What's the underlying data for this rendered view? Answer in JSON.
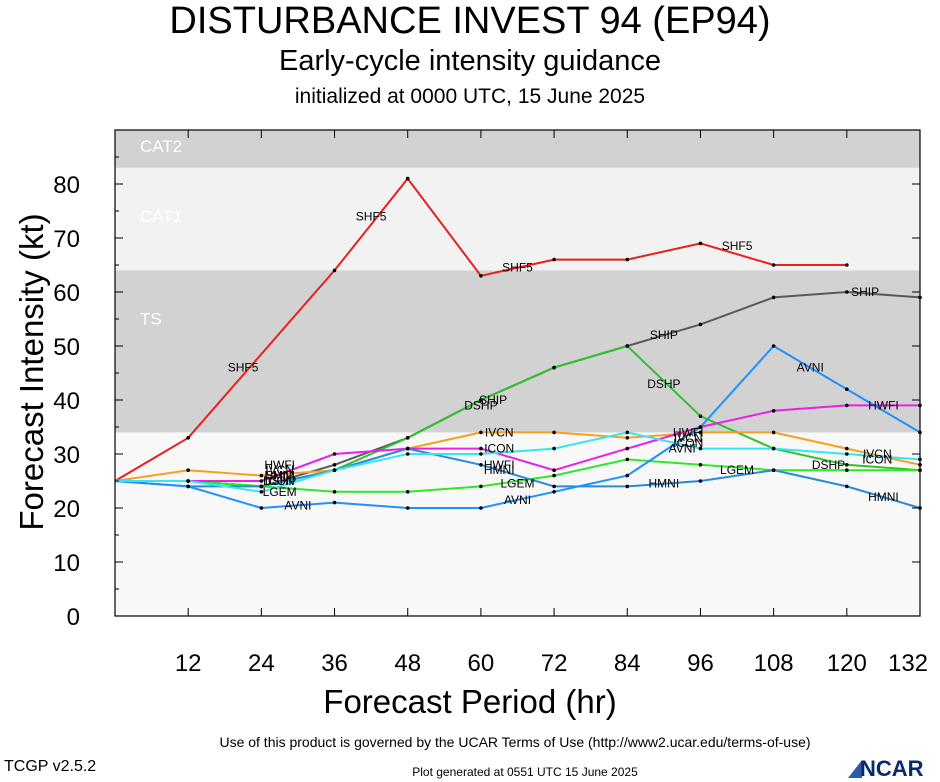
{
  "header": {
    "title": "DISTURBANCE INVEST 94 (EP94)",
    "subtitle": "Early-cycle intensity guidance",
    "initialized": "initialized at 0000 UTC, 15 June 2025"
  },
  "footer": {
    "terms": "Use of this product is governed by the UCAR Terms of Use (http://www2.ucar.edu/terms-of-use)",
    "version": "TCGP v2.5.2",
    "generated": "Plot generated at 0551 UTC   15 June 2025",
    "logo": "NCAR"
  },
  "chart_data": {
    "type": "line",
    "title": "DISTURBANCE INVEST 94 (EP94)",
    "subtitle": "Early-cycle intensity guidance",
    "xlabel": "Forecast Period (hr)",
    "ylabel": "Forecast Intensity (kt)",
    "xlim": [
      0,
      132
    ],
    "ylim": [
      0,
      90
    ],
    "xticks": [
      12,
      24,
      36,
      48,
      60,
      72,
      84,
      96,
      108,
      120,
      132
    ],
    "yticks": [
      0,
      10,
      20,
      30,
      40,
      50,
      60,
      70,
      80
    ],
    "grid": false,
    "bands": [
      {
        "label": "TS",
        "from": 34,
        "to": 64,
        "color": "#d2d2d2"
      },
      {
        "label": "CAT1",
        "from": 64,
        "to": 83,
        "color": "#f2f2f2"
      },
      {
        "label": "CAT2",
        "from": 83,
        "to": 90,
        "color": "#d2d2d2"
      }
    ],
    "series": [
      {
        "name": "SHF5",
        "color": "#e8201c",
        "x": [
          0,
          12,
          36,
          48,
          60,
          72,
          84,
          96,
          108,
          120
        ],
        "y": [
          25,
          33,
          64,
          81,
          63,
          66,
          66,
          69,
          65,
          65
        ],
        "label_at": [
          [
            21,
            46
          ],
          [
            42,
            74
          ],
          [
            66,
            64.5
          ],
          [
            102,
            68.5
          ]
        ]
      },
      {
        "name": "SHIP",
        "color": "#5a5a5a",
        "x": [
          0,
          12,
          24,
          36,
          48,
          60,
          72,
          84,
          96,
          108,
          120,
          132
        ],
        "y": [
          25,
          25,
          24,
          28,
          33,
          40,
          46,
          50,
          54,
          59,
          60,
          59
        ],
        "label_at": [
          [
            27,
            26
          ],
          [
            62,
            40
          ],
          [
            90,
            52
          ],
          [
            123,
            60
          ]
        ]
      },
      {
        "name": "DSHP",
        "color": "#2fc22b",
        "x": [
          0,
          12,
          24,
          36,
          48,
          60,
          72,
          84,
          96,
          108,
          120,
          132
        ],
        "y": [
          25,
          25,
          24,
          27,
          33,
          40,
          46,
          50,
          37,
          31,
          28,
          27
        ],
        "label_at": [
          [
            27,
            25
          ],
          [
            60,
            39
          ],
          [
            90,
            43
          ],
          [
            117,
            28
          ]
        ]
      },
      {
        "name": "LGEM",
        "color": "#2fe82b",
        "x": [
          0,
          12,
          24,
          36,
          48,
          60,
          72,
          84,
          96,
          108,
          120,
          132
        ],
        "y": [
          25,
          25,
          24,
          23,
          23,
          24,
          26,
          29,
          28,
          27,
          27,
          27
        ],
        "label_at": [
          [
            27,
            23
          ],
          [
            66,
            24.5
          ],
          [
            102,
            27
          ]
        ]
      },
      {
        "name": "IVCN",
        "color": "#f5a020",
        "x": [
          0,
          12,
          24,
          36,
          48,
          60,
          72,
          84,
          96,
          108,
          120,
          132
        ],
        "y": [
          25,
          27,
          26,
          27,
          31,
          34,
          34,
          33,
          34,
          34,
          31,
          28
        ],
        "label_at": [
          [
            27,
            27
          ],
          [
            63,
            34
          ],
          [
            94,
            33
          ],
          [
            125,
            30
          ]
        ]
      },
      {
        "name": "HWFI",
        "color": "#e820e8",
        "x": [
          0,
          12,
          24,
          36,
          48,
          60,
          72,
          84,
          96,
          108,
          120,
          132
        ],
        "y": [
          25,
          25,
          25,
          30,
          31,
          31,
          27,
          31,
          35,
          38,
          39,
          39
        ],
        "label_at": [
          [
            27,
            28
          ],
          [
            63,
            28
          ],
          [
            94,
            34
          ],
          [
            126,
            39
          ]
        ]
      },
      {
        "name": "HMNI",
        "color": "#2a8ad8",
        "x": [
          0,
          12,
          24,
          36,
          48,
          60,
          72,
          84,
          96,
          108,
          120,
          132
        ],
        "y": [
          25,
          24,
          24,
          27,
          31,
          28,
          24,
          24,
          25,
          27,
          24,
          20
        ],
        "label_at": [
          [
            27,
            26
          ],
          [
            63,
            27
          ],
          [
            90,
            24.5
          ],
          [
            126,
            22
          ]
        ]
      },
      {
        "name": "AVNI",
        "color": "#1e90ff",
        "x": [
          0,
          12,
          24,
          36,
          48,
          60,
          72,
          84,
          96,
          108,
          120,
          132
        ],
        "y": [
          25,
          24,
          20,
          21,
          20,
          20,
          23,
          26,
          35,
          50,
          42,
          34
        ],
        "label_at": [
          [
            30,
            20.5
          ],
          [
            66,
            21.5
          ],
          [
            93,
            31
          ],
          [
            114,
            46
          ]
        ]
      },
      {
        "name": "ICON",
        "color": "#35e6f0",
        "x": [
          0,
          12,
          24,
          36,
          48,
          60,
          72,
          84,
          96,
          108,
          120,
          132
        ],
        "y": [
          25,
          25,
          23,
          27,
          30,
          30,
          31,
          34,
          31,
          31,
          30,
          29
        ],
        "label_at": [
          [
            27,
            25
          ],
          [
            63,
            31
          ],
          [
            94,
            32
          ],
          [
            125,
            29
          ]
        ]
      }
    ]
  }
}
